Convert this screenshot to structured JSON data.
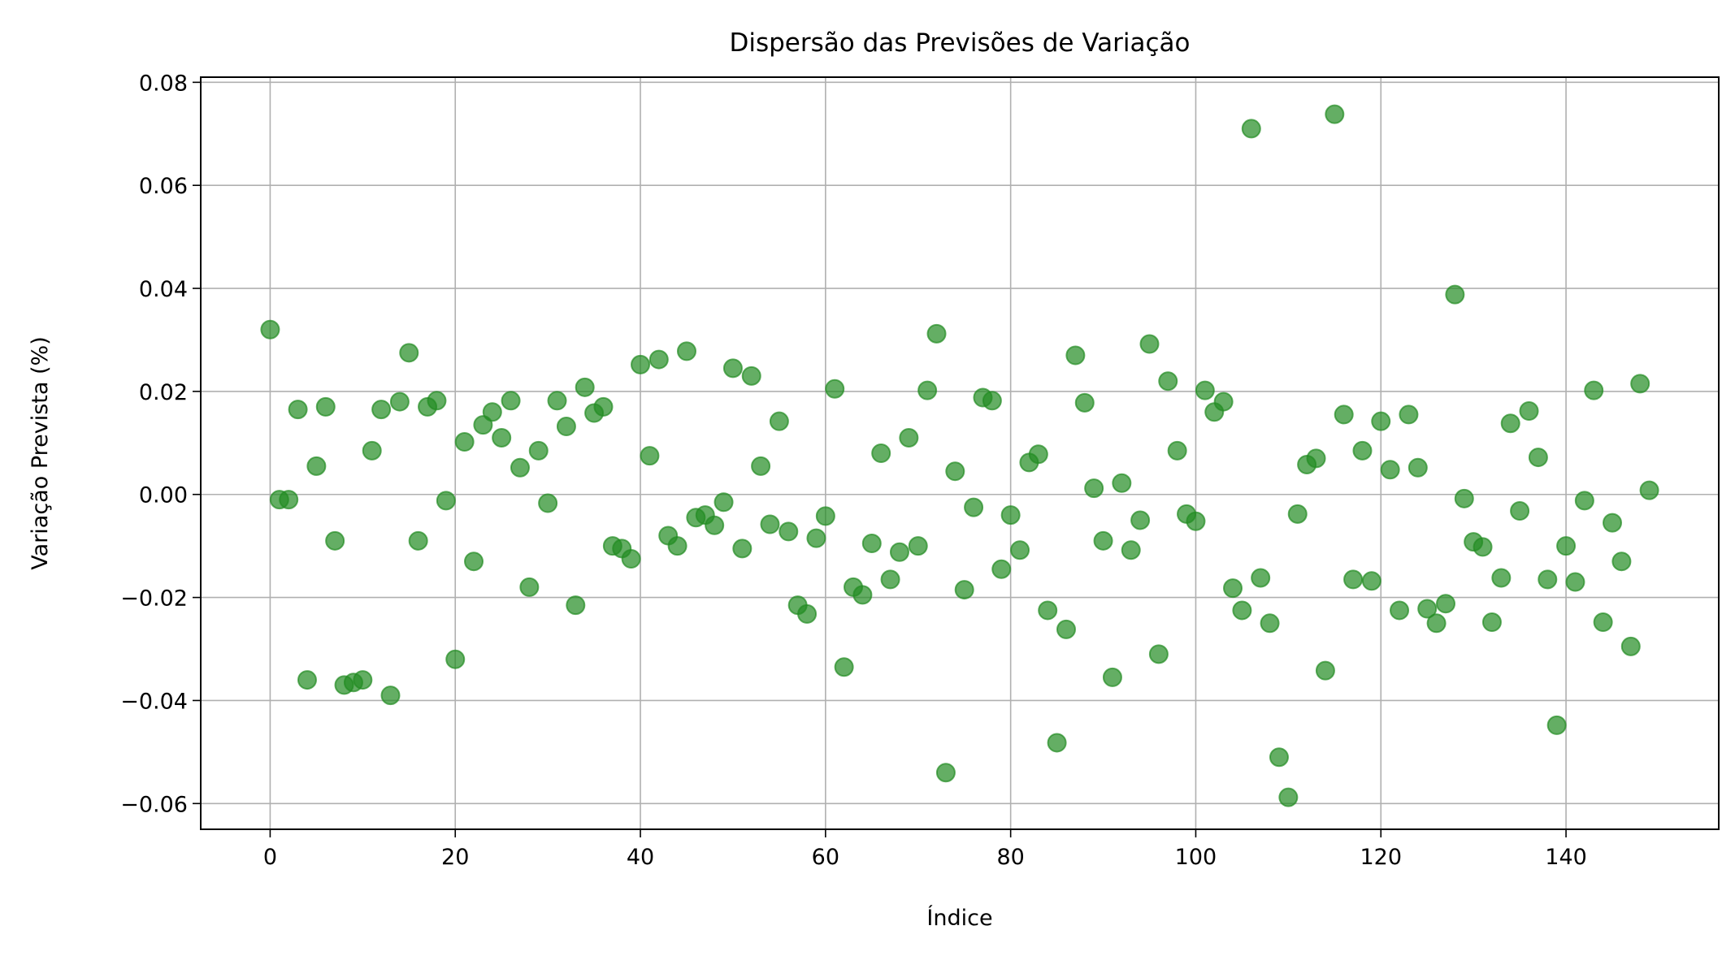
{
  "chart_data": {
    "type": "scatter",
    "title": "Dispersão das Previsões de Variação",
    "xlabel": "Índice",
    "ylabel": "Variação Prevista (%)",
    "xlim": [
      -7.5,
      156.5
    ],
    "ylim": [
      -0.065,
      0.081
    ],
    "xticks": [
      0,
      20,
      40,
      60,
      80,
      100,
      120,
      140
    ],
    "xtick_labels": [
      "0",
      "20",
      "40",
      "60",
      "80",
      "100",
      "120",
      "140"
    ],
    "yticks": [
      -0.06,
      -0.04,
      -0.02,
      0.0,
      0.02,
      0.04,
      0.06,
      0.08
    ],
    "ytick_labels": [
      "−0.06",
      "−0.04",
      "−0.02",
      "0.00",
      "0.02",
      "0.04",
      "0.06",
      "0.08"
    ],
    "grid": true,
    "marker_color": "#228b22",
    "marker_alpha": 0.7,
    "x": [
      0,
      1,
      2,
      3,
      4,
      5,
      6,
      7,
      8,
      9,
      10,
      11,
      12,
      13,
      14,
      15,
      16,
      17,
      18,
      19,
      20,
      21,
      22,
      23,
      24,
      25,
      26,
      27,
      28,
      29,
      30,
      31,
      32,
      33,
      34,
      35,
      36,
      37,
      38,
      39,
      40,
      41,
      42,
      43,
      44,
      45,
      46,
      47,
      48,
      49,
      50,
      51,
      52,
      53,
      54,
      55,
      56,
      57,
      58,
      59,
      60,
      61,
      62,
      63,
      64,
      65,
      66,
      67,
      68,
      69,
      70,
      71,
      72,
      73,
      74,
      75,
      76,
      77,
      78,
      79,
      80,
      81,
      82,
      83,
      84,
      85,
      86,
      87,
      88,
      89,
      90,
      91,
      92,
      93,
      94,
      95,
      96,
      97,
      98,
      99,
      100,
      101,
      102,
      103,
      104,
      105,
      106,
      107,
      108,
      109,
      110,
      111,
      112,
      113,
      114,
      115,
      116,
      117,
      118,
      119,
      120,
      121,
      122,
      123,
      124,
      125,
      126,
      127,
      128,
      129,
      130,
      131,
      132,
      133,
      134,
      135,
      136,
      137,
      138,
      139,
      140,
      141,
      142,
      143,
      144,
      145,
      146,
      147,
      148,
      149
    ],
    "y": [
      0.032,
      -0.001,
      -0.001,
      0.0165,
      -0.036,
      0.0055,
      0.017,
      -0.009,
      -0.037,
      -0.0365,
      -0.036,
      0.0085,
      0.0165,
      -0.039,
      0.018,
      0.0275,
      -0.009,
      0.017,
      0.0182,
      -0.0012,
      -0.032,
      0.0102,
      -0.013,
      0.0135,
      0.016,
      0.011,
      0.0182,
      0.0052,
      -0.018,
      0.0085,
      -0.0017,
      0.0182,
      0.0132,
      -0.0215,
      0.0208,
      0.0158,
      0.017,
      -0.01,
      -0.0105,
      -0.0125,
      0.0252,
      0.0075,
      0.0262,
      -0.008,
      -0.01,
      0.0278,
      -0.0045,
      -0.004,
      -0.006,
      -0.0015,
      0.0245,
      -0.0105,
      0.023,
      0.0055,
      -0.0058,
      0.0142,
      -0.0072,
      -0.0215,
      -0.0232,
      -0.0085,
      -0.0042,
      0.0205,
      -0.0335,
      -0.018,
      -0.0195,
      -0.0095,
      0.008,
      -0.0165,
      -0.0112,
      0.011,
      -0.01,
      0.0202,
      0.0312,
      -0.054,
      0.0045,
      -0.0185,
      -0.0025,
      0.0188,
      0.0182,
      -0.0145,
      -0.004,
      -0.0108,
      0.0062,
      0.0078,
      -0.0225,
      -0.0482,
      -0.0262,
      0.027,
      0.0178,
      0.0012,
      -0.009,
      -0.0355,
      0.0022,
      -0.0108,
      -0.005,
      0.0292,
      -0.031,
      0.022,
      0.0085,
      -0.0038,
      -0.0052,
      0.0202,
      0.016,
      0.018,
      -0.0182,
      -0.0225,
      0.071,
      -0.0162,
      -0.025,
      -0.051,
      -0.0588,
      -0.0038,
      0.0058,
      0.007,
      -0.0342,
      0.0738,
      0.0155,
      -0.0165,
      0.0085,
      -0.0168,
      0.0142,
      0.0048,
      -0.0225,
      0.0155,
      0.0052,
      -0.0222,
      -0.025,
      -0.0212,
      0.0388,
      -0.0008,
      -0.0092,
      -0.0102,
      -0.0248,
      -0.0162,
      0.0138,
      -0.0032,
      0.0162,
      0.0072,
      -0.0165,
      -0.0448,
      -0.01,
      -0.017,
      -0.0012,
      0.0202,
      -0.0248,
      -0.0055,
      -0.013,
      -0.0295,
      0.0215,
      0.0008
    ]
  }
}
